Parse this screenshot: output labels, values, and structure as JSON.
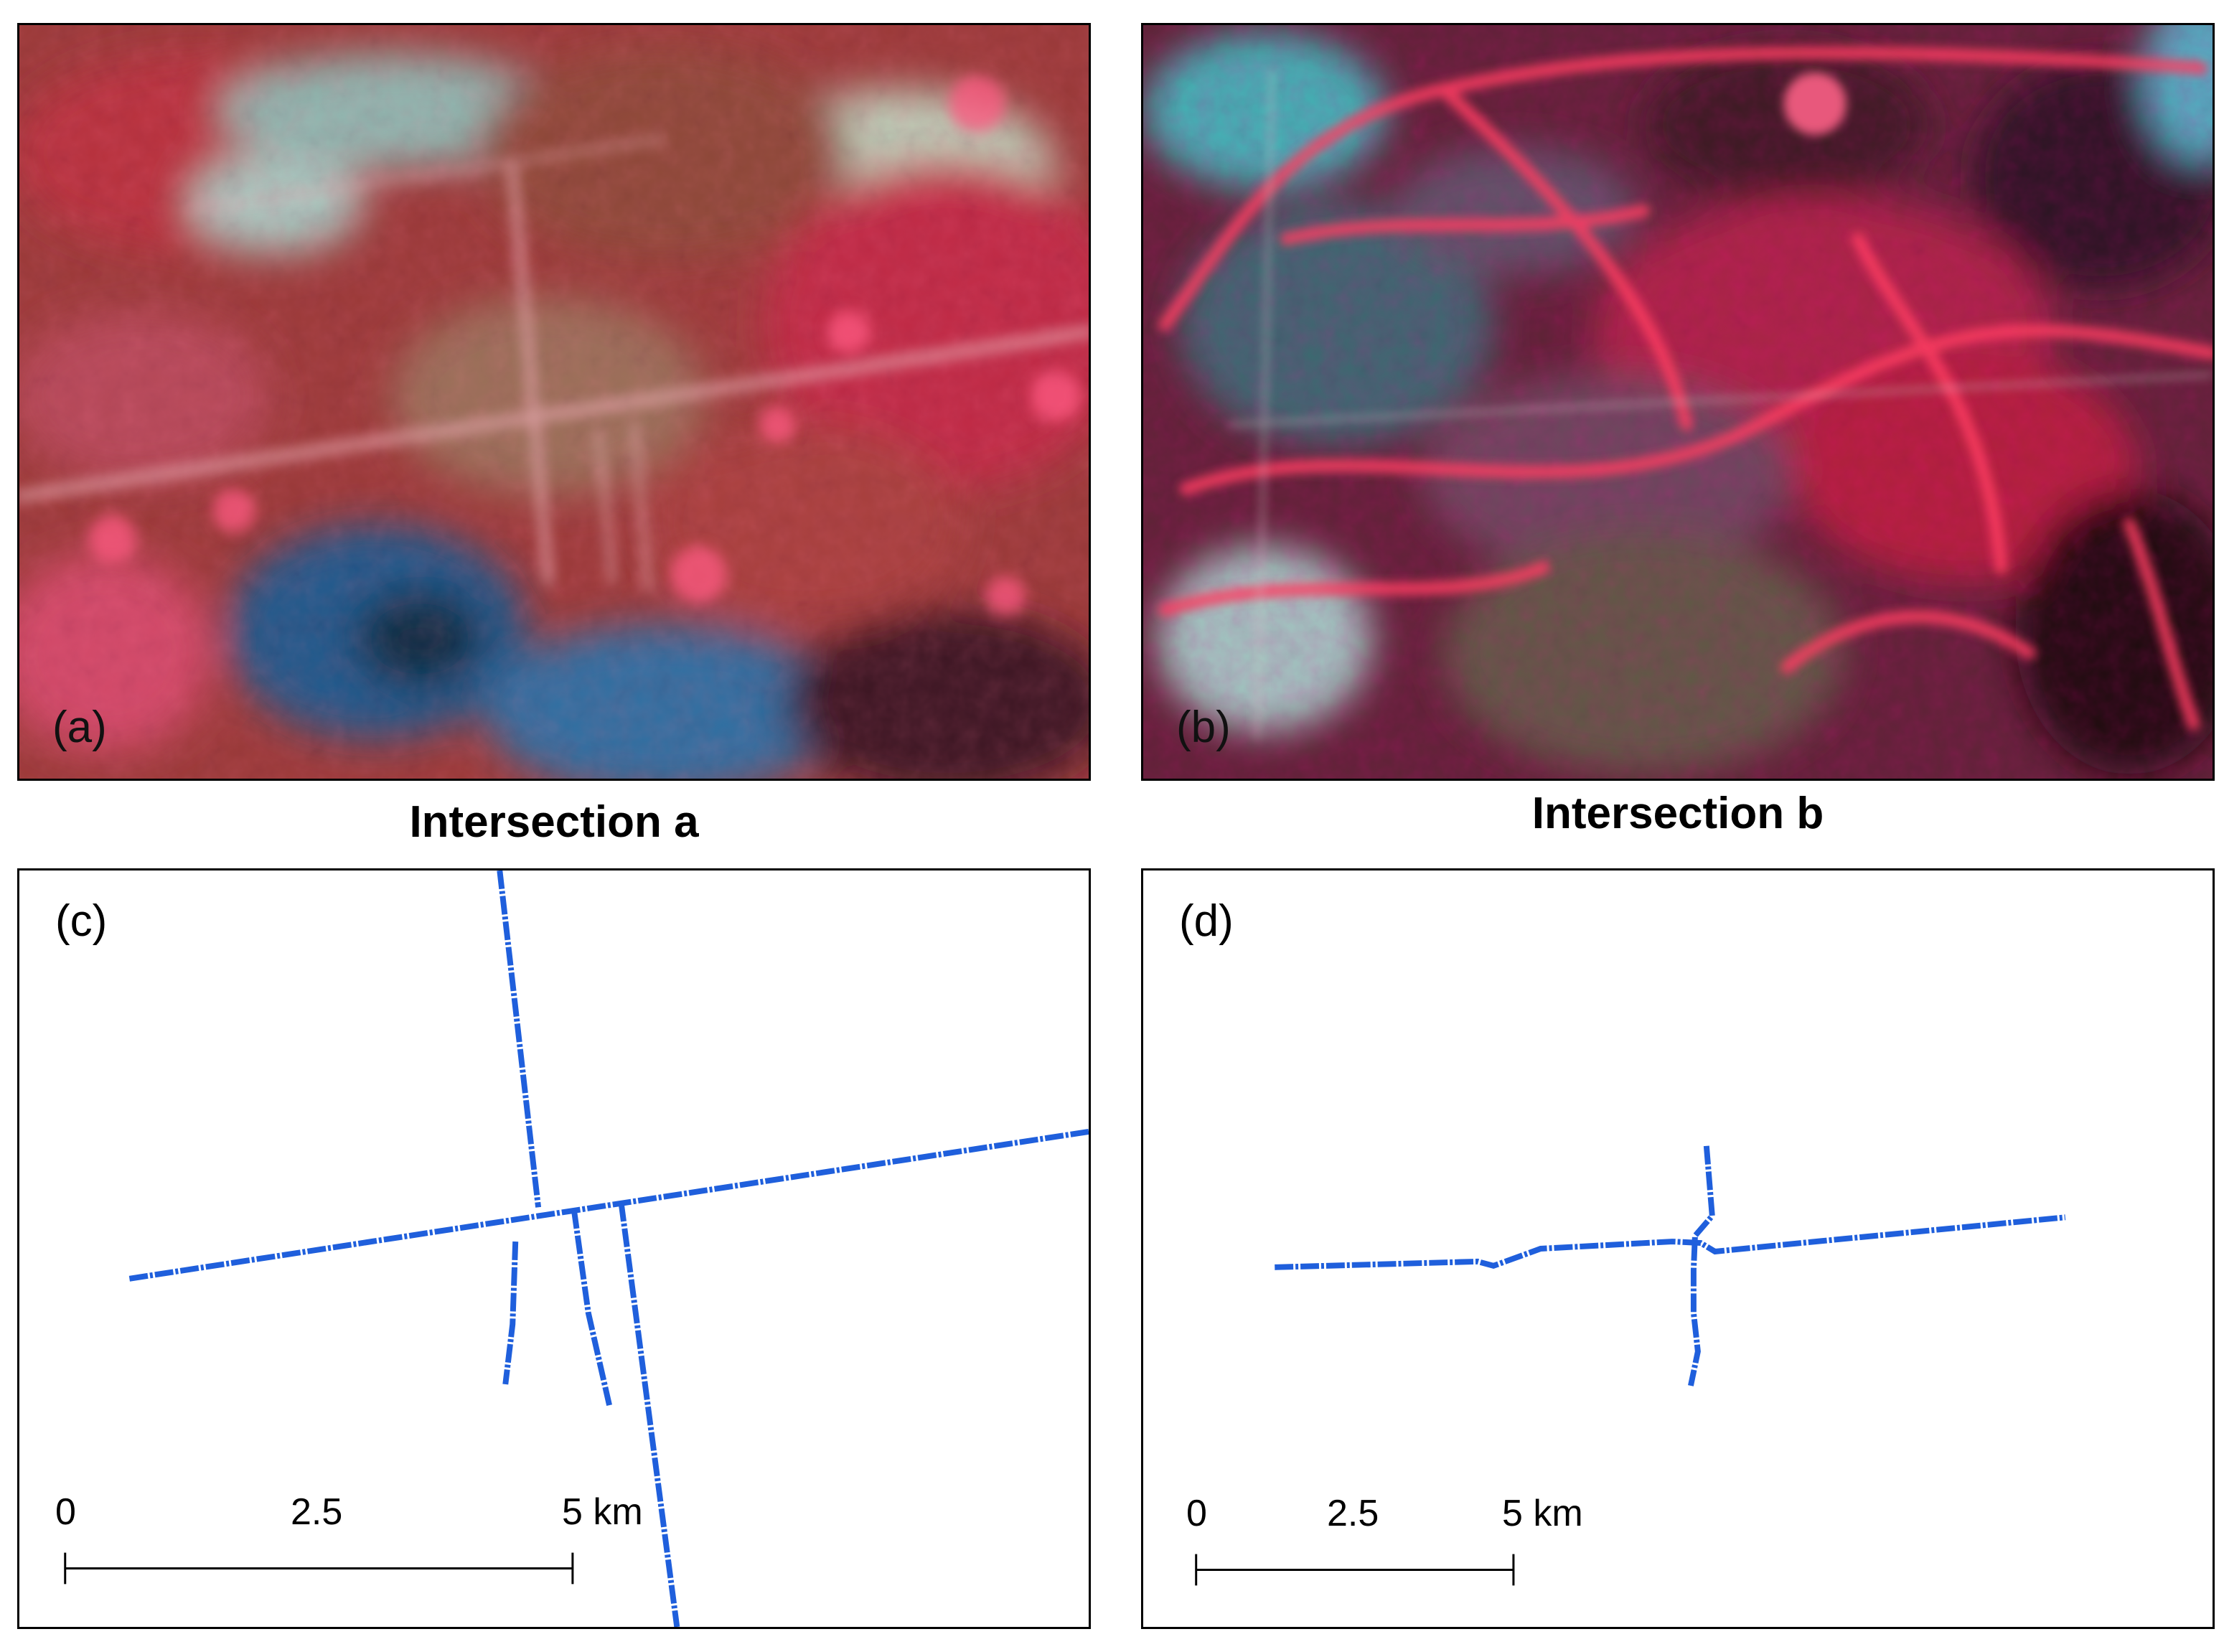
{
  "panels": {
    "a": {
      "label": "(a)",
      "type": "satellite-image"
    },
    "b": {
      "label": "(b)",
      "type": "satellite-image"
    },
    "c": {
      "label": "(c)",
      "type": "road-vector-map",
      "scale_bar": {
        "ticks": [
          "0",
          "2.5",
          "5 km"
        ]
      }
    },
    "d": {
      "label": "(d)",
      "type": "road-vector-map",
      "scale_bar": {
        "ticks": [
          "0",
          "2.5",
          "5 km"
        ]
      }
    }
  },
  "captions": {
    "a": "Intersection a",
    "b": "Intersection b"
  },
  "colors": {
    "road_line": "#1f5fdc",
    "vegetation_red": "#c8283c",
    "bright_pink": "#ff4a6e",
    "water_blue": "#1e6fa8",
    "bare_cyan": "#7ee0e0",
    "dark_shadow": "#2a0f18",
    "border": "#000000"
  }
}
